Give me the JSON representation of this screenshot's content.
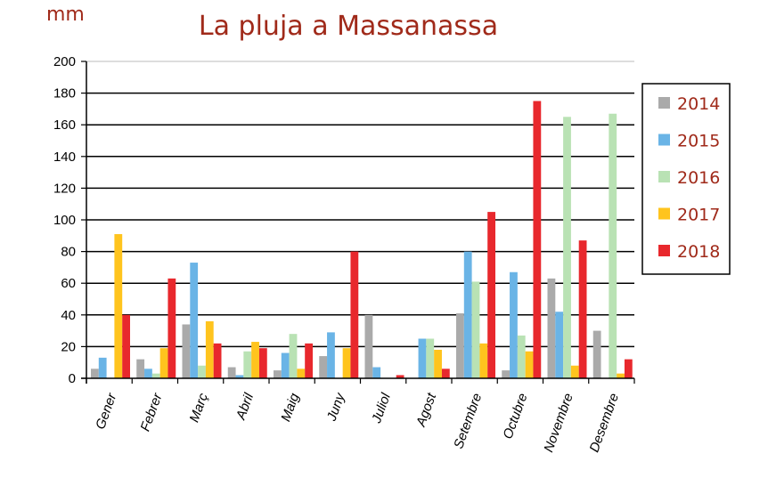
{
  "unit_label": "mm",
  "chart_data": {
    "type": "bar",
    "title": "La pluja a Massanassa",
    "xlabel": "",
    "ylabel": "mm",
    "ylim": [
      0,
      200
    ],
    "yticks": [
      0,
      20,
      40,
      60,
      80,
      100,
      120,
      140,
      160,
      180,
      200
    ],
    "grid": true,
    "legend_position": "right",
    "categories": [
      "Gener",
      "Febrer",
      "Març",
      "Abril",
      "Maig",
      "Juny",
      "Juliol",
      "Agost",
      "Setembre",
      "Octubre",
      "Novembre",
      "Desembre"
    ],
    "series": [
      {
        "name": "2014",
        "color": "#aaaaaa",
        "values": [
          6,
          12,
          34,
          7,
          5,
          14,
          40,
          0,
          41,
          5,
          63,
          30
        ]
      },
      {
        "name": "2015",
        "color": "#6ab4e6",
        "values": [
          13,
          6,
          73,
          2,
          16,
          29,
          7,
          25,
          80,
          67,
          42,
          0
        ]
      },
      {
        "name": "2016",
        "color": "#b9e2b4",
        "values": [
          0,
          3,
          8,
          17,
          28,
          0,
          0,
          25,
          61,
          27,
          165,
          167
        ]
      },
      {
        "name": "2017",
        "color": "#ffc41e",
        "values": [
          91,
          19,
          36,
          23,
          6,
          19,
          0,
          18,
          22,
          17,
          8,
          3
        ]
      },
      {
        "name": "2018",
        "color": "#e8282d",
        "values": [
          40,
          63,
          22,
          19,
          22,
          80,
          2,
          6,
          105,
          175,
          87,
          12
        ]
      }
    ]
  }
}
